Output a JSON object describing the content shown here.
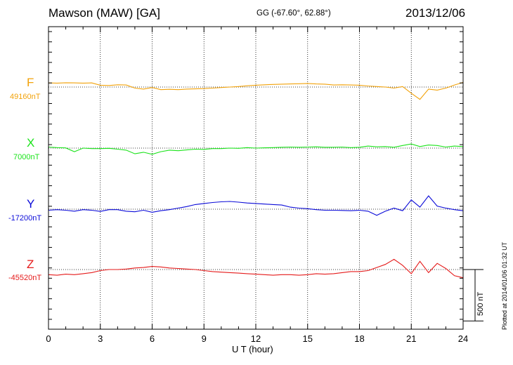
{
  "header": {
    "title": "Mawson (MAW)  [GA]",
    "coords": "GG (-67.60°,  62.88°)",
    "date": "2013/12/06"
  },
  "footer": {
    "plotted": "Plotted at 2014/01/06 01:32 UT"
  },
  "scale_bar": {
    "label": "500 nT",
    "value_nT": 500
  },
  "colors": {
    "F": "#f2a20a",
    "X": "#1ae31a",
    "Y": "#0a0ad8",
    "Z": "#e51a1a"
  },
  "chart_data": {
    "type": "line",
    "title": "Mawson (MAW)  [GA]",
    "xlabel": "U T (hour)",
    "ylabel": "",
    "x_ticks": [
      "0",
      "3",
      "6",
      "9",
      "12",
      "15",
      "18",
      "21",
      "24"
    ],
    "xlim": [
      0,
      24
    ],
    "grid": true,
    "scale_nT_per_division": 100,
    "x": [
      0,
      0.5,
      1,
      1.5,
      2,
      2.5,
      3,
      3.5,
      4,
      4.5,
      5,
      5.5,
      6,
      6.5,
      7,
      7.5,
      8,
      8.5,
      9,
      9.5,
      10,
      10.5,
      11,
      11.5,
      12,
      12.5,
      13,
      13.5,
      14,
      14.5,
      15,
      15.5,
      16,
      16.5,
      17,
      17.5,
      18,
      18.5,
      19,
      19.5,
      20,
      20.5,
      21,
      21.5,
      22,
      22.5,
      23,
      23.5,
      24
    ],
    "series": [
      {
        "name": "F",
        "baseline_label": "49160nT",
        "color": "#f2a20a",
        "values_nT": [
          40,
          38,
          42,
          40,
          38,
          40,
          18,
          15,
          22,
          20,
          -10,
          -20,
          -5,
          -25,
          -22,
          -25,
          -20,
          -18,
          -15,
          -10,
          -5,
          0,
          5,
          12,
          18,
          22,
          25,
          28,
          30,
          32,
          35,
          30,
          28,
          20,
          22,
          20,
          18,
          10,
          5,
          0,
          -10,
          5,
          -60,
          -120,
          -20,
          -30,
          -10,
          20,
          45
        ]
      },
      {
        "name": "X",
        "baseline_label": "7000nT",
        "color": "#1ae31a",
        "values_nT": [
          10,
          5,
          2,
          -35,
          0,
          -5,
          -5,
          -2,
          -10,
          -20,
          -55,
          -40,
          -60,
          -35,
          -20,
          -25,
          -18,
          -10,
          -12,
          -5,
          -5,
          0,
          -2,
          5,
          0,
          3,
          5,
          8,
          10,
          8,
          10,
          12,
          8,
          8,
          10,
          5,
          8,
          20,
          12,
          15,
          8,
          25,
          40,
          15,
          30,
          25,
          10,
          20,
          15
        ]
      },
      {
        "name": "Y",
        "baseline_label": "-17200nT",
        "color": "#0a0ad8",
        "values_nT": [
          -10,
          -5,
          -10,
          -20,
          -5,
          -10,
          -22,
          -5,
          -5,
          -20,
          -25,
          -10,
          -30,
          -15,
          -5,
          10,
          25,
          45,
          55,
          65,
          72,
          75,
          68,
          60,
          55,
          50,
          45,
          40,
          20,
          10,
          5,
          -5,
          -10,
          -10,
          -12,
          -15,
          -10,
          -20,
          -60,
          -20,
          10,
          -15,
          90,
          20,
          130,
          30,
          10,
          -5,
          -15
        ]
      },
      {
        "name": "Z",
        "baseline_label": "-45520nT",
        "color": "#e51a1a",
        "values_nT": [
          -50,
          -55,
          -45,
          -50,
          -40,
          -30,
          -10,
          0,
          0,
          5,
          15,
          20,
          30,
          25,
          15,
          10,
          5,
          0,
          -10,
          -20,
          -25,
          -30,
          -35,
          -40,
          -45,
          -50,
          -55,
          -50,
          -50,
          -55,
          -50,
          -40,
          -45,
          -40,
          -30,
          -20,
          -20,
          -10,
          20,
          50,
          100,
          40,
          -40,
          80,
          -30,
          60,
          10,
          -60,
          -80
        ]
      }
    ]
  }
}
